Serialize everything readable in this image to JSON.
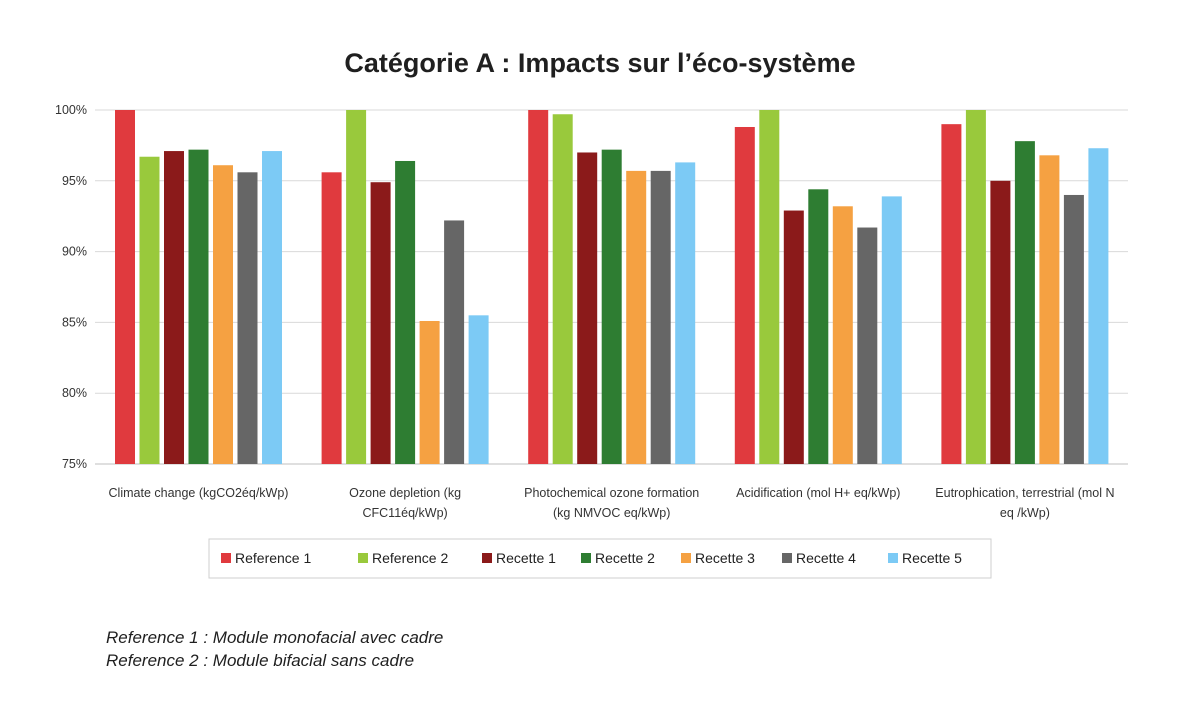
{
  "chart_data": {
    "type": "bar",
    "title": "Catégorie A : Impacts sur l’éco-système",
    "categories": [
      [
        "Climate change (kgCO2éq/kWp)"
      ],
      [
        "Ozone depletion (kg",
        "CFC11éq/kWp)"
      ],
      [
        "Photochemical ozone formation",
        "(kg NMVOC eq/kWp)"
      ],
      [
        "Acidification (mol H+ eq/kWp)"
      ],
      [
        "Eutrophication, terrestrial (mol N",
        "eq /kWp)"
      ]
    ],
    "ylim": [
      75,
      100
    ],
    "yticks": [
      75,
      80,
      85,
      90,
      95,
      100
    ],
    "ytick_labels": [
      "75%",
      "80%",
      "85%",
      "90%",
      "95%",
      "100%"
    ],
    "grid": true,
    "legend_position": "bottom",
    "series": [
      {
        "name": "Reference 1",
        "color": "#e03a3e",
        "values": [
          100,
          95.6,
          100,
          98.8,
          99.0
        ]
      },
      {
        "name": "Reference 2",
        "color": "#99c93c",
        "values": [
          96.7,
          100,
          99.7,
          100,
          100
        ]
      },
      {
        "name": "Recette 1",
        "color": "#8b1a1a",
        "values": [
          97.1,
          94.9,
          97.0,
          92.9,
          95.0
        ]
      },
      {
        "name": "Recette 2",
        "color": "#2e7d32",
        "values": [
          97.2,
          96.4,
          97.2,
          94.4,
          97.8
        ]
      },
      {
        "name": "Recette 3",
        "color": "#f5a142",
        "values": [
          96.1,
          85.1,
          95.7,
          93.2,
          96.8
        ]
      },
      {
        "name": "Recette 4",
        "color": "#666666",
        "values": [
          95.6,
          92.2,
          95.7,
          91.7,
          94.0
        ]
      },
      {
        "name": "Recette 5",
        "color": "#7ccaf5",
        "values": [
          97.1,
          85.5,
          96.3,
          93.9,
          97.3
        ]
      }
    ]
  },
  "footnotes": [
    "Reference 1 : Module monofacial avec cadre",
    "Reference 2 : Module bifacial sans cadre"
  ]
}
